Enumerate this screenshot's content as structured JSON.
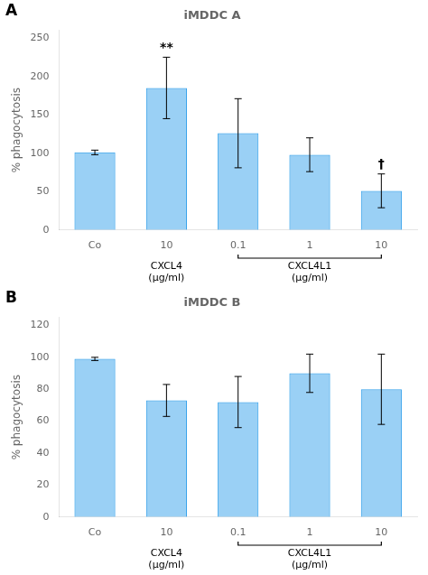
{
  "chart_data": [
    {
      "type": "bar",
      "panel_label": "A",
      "title": "iMDDC A",
      "ylabel": "% phagocytosis",
      "categories": [
        "Co",
        "10",
        "0.1",
        "1",
        "10"
      ],
      "values": [
        101,
        185,
        126,
        98,
        51
      ],
      "errors": [
        3,
        40,
        45,
        22,
        22
      ],
      "ylim": [
        0,
        260
      ],
      "yticks": [
        0,
        50,
        100,
        150,
        200,
        250
      ],
      "grid": false,
      "annotations": [
        {
          "text": "**",
          "index": 1
        },
        {
          "text": "†",
          "index": 4
        }
      ],
      "group_labels": [
        {
          "text": "CXCL4\n(μg/ml)",
          "from": 1,
          "to": 1
        },
        {
          "text": "CXCL4L1\n(μg/ml)",
          "from": 2,
          "to": 4
        }
      ]
    },
    {
      "type": "bar",
      "panel_label": "B",
      "title": "iMDDC B",
      "ylabel": "% phagocytosis",
      "categories": [
        "Co",
        "10",
        "0.1",
        "1",
        "10"
      ],
      "values": [
        99,
        73,
        72,
        90,
        80
      ],
      "errors": [
        1,
        10,
        16,
        12,
        22
      ],
      "ylim": [
        0,
        125
      ],
      "yticks": [
        0,
        20,
        40,
        60,
        80,
        100,
        120
      ],
      "grid": false,
      "group_labels": [
        {
          "text": "CXCL4\n(μg/ml)",
          "from": 1,
          "to": 1
        },
        {
          "text": "CXCL4L1\n(μg/ml)",
          "from": 2,
          "to": 4
        }
      ]
    }
  ]
}
